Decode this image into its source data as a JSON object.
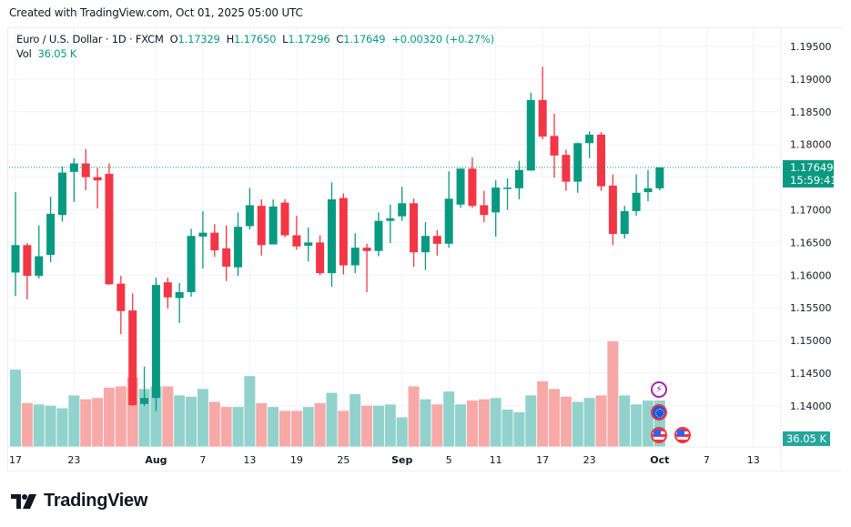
{
  "header": {
    "created": "Created with TradingView.com, Oct 01, 2025 05:00 UTC"
  },
  "legend": {
    "symbol": "Euro / U.S. Dollar · 1D · FXCM",
    "o_label": "O",
    "o_value": "1.17329",
    "h_label": "H",
    "h_value": "1.17650",
    "l_label": "L",
    "l_value": "1.17296",
    "c_label": "C",
    "c_value": "1.17649",
    "change": "+0.00320 (+0.27%)",
    "vol_label": "Vol",
    "vol_value": "36.05 K"
  },
  "price_tag": {
    "price": "1.17649",
    "countdown": "15:59:41"
  },
  "volume_tag": "36.05 K",
  "events": [
    {
      "type": "lightning-icon"
    },
    {
      "type": "eu-flag-icon"
    },
    {
      "type": "us-flag-icon"
    },
    {
      "type": "us-flag-icon"
    }
  ],
  "logo": {
    "text": "TradingView"
  },
  "colors": {
    "up": "#089981",
    "down": "#f23645",
    "vol_up": "#92d2cc",
    "vol_down": "#f7a9a7"
  },
  "chart_data": {
    "type": "candlestick",
    "title": "Euro / U.S. Dollar · 1D · FXCM",
    "ylabel": "Price",
    "ylim": [
      1.1372,
      1.1993
    ],
    "yticks": [
      "1.19500",
      "1.19000",
      "1.18500",
      "1.18000",
      "1.17500",
      "1.17000",
      "1.16500",
      "1.16000",
      "1.15500",
      "1.15000",
      "1.14500",
      "1.14000"
    ],
    "xticks": [
      {
        "label": "17",
        "index": 0
      },
      {
        "label": "23",
        "index": 5
      },
      {
        "label": "Aug",
        "index": 12
      },
      {
        "label": "7",
        "index": 16
      },
      {
        "label": "13",
        "index": 20
      },
      {
        "label": "19",
        "index": 24
      },
      {
        "label": "25",
        "index": 28
      },
      {
        "label": "Sep",
        "index": 33
      },
      {
        "label": "5",
        "index": 37
      },
      {
        "label": "11",
        "index": 41
      },
      {
        "label": "17",
        "index": 45
      },
      {
        "label": "23",
        "index": 49
      },
      {
        "label": "Oct",
        "index": 55
      },
      {
        "label": "7",
        "index": 59
      },
      {
        "label": "13",
        "index": 63
      }
    ],
    "last_price": 1.17649,
    "grid": true,
    "candles": [
      [
        1.1604,
        1.1727,
        1.1568,
        1.1646
      ],
      [
        1.1646,
        1.1649,
        1.1563,
        1.1599
      ],
      [
        1.1599,
        1.1676,
        1.1595,
        1.1629
      ],
      [
        1.1631,
        1.172,
        1.162,
        1.1694
      ],
      [
        1.1692,
        1.1766,
        1.1682,
        1.1757
      ],
      [
        1.1758,
        1.1779,
        1.1712,
        1.1771
      ],
      [
        1.1771,
        1.1793,
        1.173,
        1.175
      ],
      [
        1.175,
        1.1764,
        1.1702,
        1.1745
      ],
      [
        1.1755,
        1.1771,
        1.1585,
        1.1586
      ],
      [
        1.1587,
        1.1599,
        1.151,
        1.1545
      ],
      [
        1.1546,
        1.1572,
        1.14,
        1.1401
      ],
      [
        1.1403,
        1.146,
        1.14,
        1.1412
      ],
      [
        1.1412,
        1.1596,
        1.1392,
        1.1585
      ],
      [
        1.1589,
        1.1596,
        1.1549,
        1.1566
      ],
      [
        1.1565,
        1.1588,
        1.1527,
        1.1574
      ],
      [
        1.1574,
        1.1671,
        1.1567,
        1.166
      ],
      [
        1.1659,
        1.1698,
        1.161,
        1.1665
      ],
      [
        1.1665,
        1.1678,
        1.1628,
        1.1638
      ],
      [
        1.1641,
        1.1676,
        1.1591,
        1.1613
      ],
      [
        1.1612,
        1.1696,
        1.1599,
        1.1674
      ],
      [
        1.1675,
        1.1733,
        1.167,
        1.1707
      ],
      [
        1.1706,
        1.1716,
        1.163,
        1.1646
      ],
      [
        1.1647,
        1.1716,
        1.1647,
        1.1705
      ],
      [
        1.1711,
        1.1716,
        1.1658,
        1.1661
      ],
      [
        1.1661,
        1.1691,
        1.1639,
        1.1644
      ],
      [
        1.1645,
        1.1673,
        1.1621,
        1.165
      ],
      [
        1.165,
        1.1661,
        1.16,
        1.1603
      ],
      [
        1.1603,
        1.1742,
        1.1582,
        1.1716
      ],
      [
        1.1718,
        1.1725,
        1.1601,
        1.1615
      ],
      [
        1.1615,
        1.1664,
        1.1603,
        1.1642
      ],
      [
        1.1642,
        1.1648,
        1.1574,
        1.1637
      ],
      [
        1.1637,
        1.1696,
        1.1629,
        1.1683
      ],
      [
        1.1683,
        1.1708,
        1.1649,
        1.1687
      ],
      [
        1.169,
        1.1735,
        1.1683,
        1.171
      ],
      [
        1.171,
        1.1717,
        1.1613,
        1.1635
      ],
      [
        1.1635,
        1.1681,
        1.1608,
        1.166
      ],
      [
        1.166,
        1.1669,
        1.163,
        1.1648
      ],
      [
        1.1648,
        1.1759,
        1.1642,
        1.1717
      ],
      [
        1.1708,
        1.1763,
        1.1703,
        1.1763
      ],
      [
        1.1763,
        1.178,
        1.1703,
        1.1706
      ],
      [
        1.1707,
        1.1729,
        1.1681,
        1.1692
      ],
      [
        1.1696,
        1.1745,
        1.1659,
        1.1734
      ],
      [
        1.1733,
        1.1748,
        1.17,
        1.1734
      ],
      [
        1.1733,
        1.1775,
        1.1716,
        1.1761
      ],
      [
        1.176,
        1.1879,
        1.176,
        1.1868
      ],
      [
        1.1868,
        1.1919,
        1.1808,
        1.1812
      ],
      [
        1.1813,
        1.1847,
        1.1749,
        1.1783
      ],
      [
        1.1784,
        1.1792,
        1.1729,
        1.1743
      ],
      [
        1.1743,
        1.1803,
        1.1726,
        1.1802
      ],
      [
        1.1802,
        1.182,
        1.1779,
        1.1815
      ],
      [
        1.1815,
        1.1819,
        1.1729,
        1.1736
      ],
      [
        1.1737,
        1.1754,
        1.1646,
        1.1663
      ],
      [
        1.1663,
        1.1706,
        1.1656,
        1.1698
      ],
      [
        1.1698,
        1.1754,
        1.1691,
        1.1726
      ],
      [
        1.1727,
        1.1761,
        1.1713,
        1.1733
      ],
      [
        1.17329,
        1.1765,
        1.17296,
        1.17649
      ]
    ],
    "candle_format": [
      "open",
      "high",
      "low",
      "close"
    ],
    "volume_k": [
      60,
      34,
      33,
      32,
      30,
      40,
      37,
      38,
      46,
      47,
      54,
      45,
      47,
      47,
      40,
      39,
      45,
      35,
      31,
      31,
      55,
      34,
      31,
      28,
      28,
      31,
      34,
      42,
      28,
      41,
      32,
      32,
      33,
      23,
      47,
      37,
      33,
      43,
      33,
      36,
      37,
      38,
      29,
      27,
      40,
      51,
      45,
      39,
      35,
      38,
      40,
      82,
      40,
      33,
      36,
      36.05
    ]
  }
}
